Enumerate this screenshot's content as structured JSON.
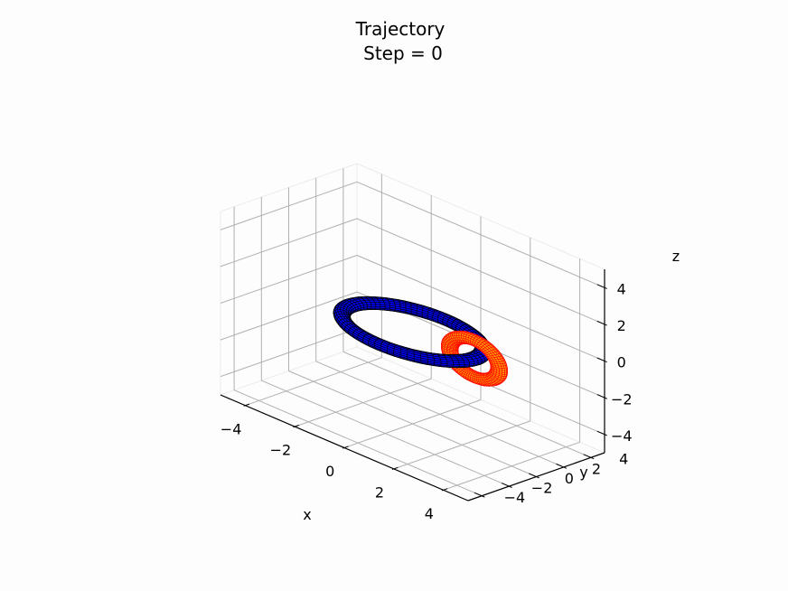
{
  "chart_data": {
    "type": "3d-surface",
    "title_line1": "Trajectory",
    "title_line2": "Step = 0",
    "xlabel": "x",
    "ylabel": "y",
    "zlabel": "z",
    "xlim": [
      -5,
      5
    ],
    "ylim": [
      -5,
      5
    ],
    "zlim": [
      -5,
      5
    ],
    "xticks": [
      -4,
      -2,
      0,
      2,
      4
    ],
    "yticks": [
      -4,
      -2,
      0,
      2,
      4
    ],
    "zticks": [
      -4,
      -2,
      0,
      2,
      4
    ],
    "xtick_labels": [
      "−4",
      "−2",
      "0",
      "2",
      "4"
    ],
    "ytick_labels": [
      "−4",
      "−2",
      "0",
      "2",
      "4"
    ],
    "ztick_labels": [
      "−4",
      "−2",
      "0",
      "2",
      "4"
    ],
    "grid": true,
    "series": [
      {
        "shape": "torus",
        "center": [
          0,
          0,
          0
        ],
        "major_radius": 2.5,
        "minor_radius": 0.3,
        "plane": "xy",
        "color": "#0000ff",
        "edgecolor": "#000000"
      },
      {
        "shape": "torus",
        "center": [
          2.5,
          0,
          0
        ],
        "major_radius": 1.0,
        "minor_radius": 0.3,
        "plane": "xz",
        "color": "#ffa500",
        "edgecolor": "#ff0000"
      }
    ]
  }
}
